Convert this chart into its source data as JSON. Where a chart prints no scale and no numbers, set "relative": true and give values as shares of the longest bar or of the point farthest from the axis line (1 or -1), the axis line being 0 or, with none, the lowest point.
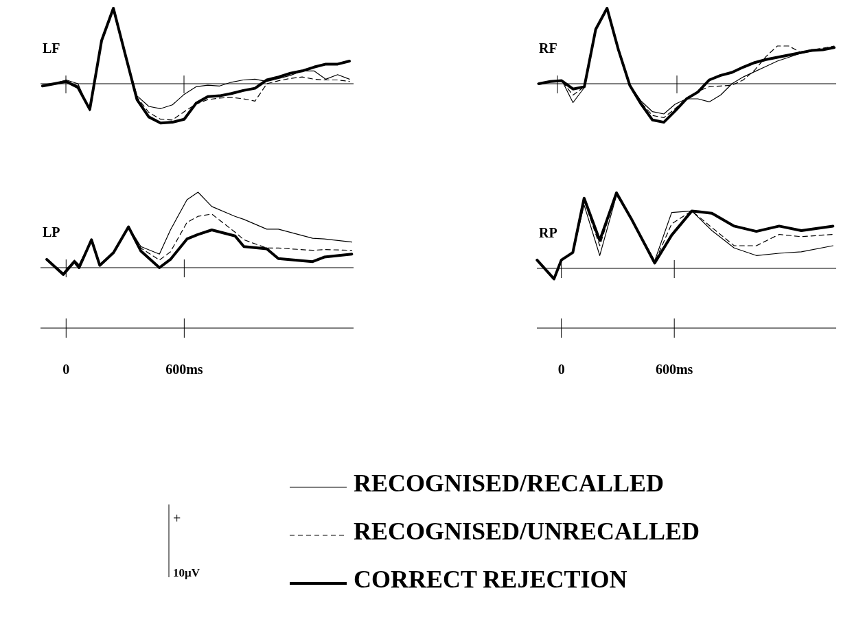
{
  "chart_data": [
    {
      "type": "line",
      "title": "LF",
      "relative": true,
      "legend": "bottom",
      "annotations": [
        "+",
        "10µV"
      ],
      "categories": [
        null,
        null,
        null,
        null,
        null,
        null,
        null,
        null,
        null,
        null,
        null,
        null,
        null,
        null,
        null,
        null,
        null,
        null,
        null,
        null,
        null,
        null,
        null,
        null,
        null,
        null,
        null
      ],
      "series": [
        {
          "name": "RECOGNISED/RECALLED",
          "color": "#000000",
          "line_style": "solid",
          "values": [
            -0.03,
            0,
            0.05,
            0,
            -0.36,
            0.57,
            0.98,
            0.39,
            -0.16,
            -0.3,
            -0.33,
            -0.28,
            -0.14,
            -0.04,
            -0.02,
            -0.03,
            0.02,
            0.05,
            0.06,
            0.03,
            0.07,
            0.11,
            0.17,
            0.17,
            0.06,
            0.12,
            0.06
          ]
        },
        {
          "name": "RECOGNISED/UNRECALLED",
          "color": "#000000",
          "line_style": "dashed",
          "values": [
            -0.03,
            0,
            0.04,
            -0.03,
            -0.34,
            0.57,
            0.98,
            0.39,
            -0.18,
            -0.38,
            -0.47,
            -0.48,
            -0.37,
            -0.27,
            -0.21,
            -0.19,
            -0.18,
            -0.2,
            -0.23,
            0,
            0.04,
            0.07,
            0.09,
            0.06,
            0.05,
            0.05,
            0.03
          ]
        },
        {
          "name": "CORRECT REJECTION",
          "color": "#000000",
          "line_style": "solid",
          "values": [
            -0.03,
            0,
            0.03,
            -0.05,
            -0.34,
            0.57,
            1,
            0.39,
            -0.21,
            -0.44,
            -0.52,
            -0.51,
            -0.47,
            -0.26,
            -0.17,
            -0.16,
            -0.13,
            -0.09,
            -0.06,
            0.05,
            0.09,
            0.14,
            0.17,
            0.22,
            0.26,
            0.26,
            0.3
          ]
        }
      ]
    },
    {
      "type": "line",
      "title": "RF",
      "relative": true,
      "categories": [
        null,
        null,
        null,
        null,
        null,
        null,
        null,
        null,
        null,
        null,
        null,
        null,
        null,
        null,
        null,
        null,
        null,
        null,
        null,
        null,
        null,
        null,
        null,
        null,
        null,
        null,
        null
      ],
      "series": [
        {
          "color": "#000000",
          "line_style": "solid",
          "values": [
            0,
            0.03,
            0.05,
            -0.25,
            -0.05,
            0.73,
            0.98,
            0.46,
            -0.01,
            -0.23,
            -0.37,
            -0.4,
            -0.27,
            -0.2,
            -0.2,
            -0.24,
            -0.15,
            0,
            0.09,
            0.16,
            0.23,
            0.3,
            0.35,
            0.4,
            0.43,
            0.45,
            0.48
          ]
        },
        {
          "color": "#000000",
          "line_style": "dashed",
          "values": [
            0,
            0.03,
            0.04,
            -0.15,
            -0.04,
            0.74,
            0.99,
            0.46,
            -0.02,
            -0.25,
            -0.42,
            -0.45,
            -0.33,
            -0.2,
            -0.1,
            -0.04,
            -0.03,
            -0.02,
            0.05,
            0.18,
            0.36,
            0.5,
            0.5,
            0.42,
            0.45,
            0.47,
            0.5
          ]
        },
        {
          "color": "#000000",
          "line_style": "solid",
          "values": [
            0,
            0.03,
            0.04,
            -0.07,
            -0.04,
            0.72,
            1,
            0.45,
            -0.02,
            -0.27,
            -0.48,
            -0.51,
            -0.36,
            -0.2,
            -0.11,
            0.05,
            0.11,
            0.15,
            0.22,
            0.28,
            0.32,
            0.35,
            0.38,
            0.41,
            0.44,
            0.45,
            0.48
          ]
        }
      ]
    },
    {
      "type": "line",
      "title": "LP",
      "relative": true,
      "xlim": [
        -130,
        1460
      ],
      "xticks": [
        0,
        {
          "value": 600,
          "label": "600ms"
        }
      ],
      "x": [
        -98,
        -14,
        42,
        66,
        129,
        171,
        241,
        317,
        380,
        474,
        530,
        614,
        670,
        740,
        858,
        903,
        1019,
        1078,
        1252,
        1311,
        1451
      ],
      "series": [
        {
          "color": "#000000",
          "line_style": "solid",
          "values": [
            0.11,
            -0.07,
            0.1,
            0.04,
            0.37,
            0.04,
            0.21,
            0.54,
            0.28,
            0.18,
            0.5,
            0.9,
            1,
            0.81,
            0.68,
            0.64,
            0.51,
            0.51,
            0.39,
            0.38,
            0.34
          ]
        },
        {
          "color": "#000000",
          "line_style": "dashed",
          "values": [
            0.11,
            -0.09,
            0.09,
            0.03,
            0.37,
            0.03,
            0.21,
            0.54,
            0.26,
            0.1,
            0.21,
            0.6,
            0.68,
            0.71,
            0.47,
            0.37,
            0.26,
            0.26,
            0.23,
            0.24,
            0.23
          ]
        },
        {
          "color": "#000000",
          "line_style": "solid",
          "values": [
            0.11,
            -0.09,
            0.08,
            0,
            0.37,
            0.03,
            0.2,
            0.54,
            0.22,
            0,
            0.11,
            0.38,
            0.44,
            0.5,
            0.42,
            0.28,
            0.25,
            0.12,
            0.08,
            0.14,
            0.18
          ]
        }
      ]
    },
    {
      "type": "line",
      "title": "RP",
      "relative": true,
      "xlim": [
        -130,
        1460
      ],
      "xticks": [
        0,
        {
          "value": 600,
          "label": "600ms"
        }
      ],
      "x": [
        -129,
        -39,
        0,
        61,
        121,
        204,
        293,
        371,
        496,
        586,
        693,
        800,
        918,
        1036,
        1157,
        1275,
        1443
      ],
      "series": [
        {
          "color": "#000000",
          "line_style": "solid",
          "values": [
            0.11,
            -0.14,
            0.11,
            0.21,
            0.84,
            0.17,
            0.97,
            0.66,
            0.1,
            0.74,
            0.76,
            0.5,
            0.27,
            0.17,
            0.2,
            0.22,
            0.3
          ]
        },
        {
          "color": "#000000",
          "line_style": "dashed",
          "values": [
            0.11,
            -0.14,
            0.11,
            0.21,
            0.9,
            0.3,
            0.99,
            0.66,
            0.08,
            0.59,
            0.76,
            0.54,
            0.3,
            0.3,
            0.45,
            0.42,
            0.45
          ]
        },
        {
          "color": "#000000",
          "line_style": "solid",
          "values": [
            0.11,
            -0.14,
            0.11,
            0.21,
            0.93,
            0.37,
            1,
            0.66,
            0.07,
            0.44,
            0.76,
            0.73,
            0.56,
            0.49,
            0.56,
            0.5,
            0.56
          ]
        }
      ]
    }
  ]
}
